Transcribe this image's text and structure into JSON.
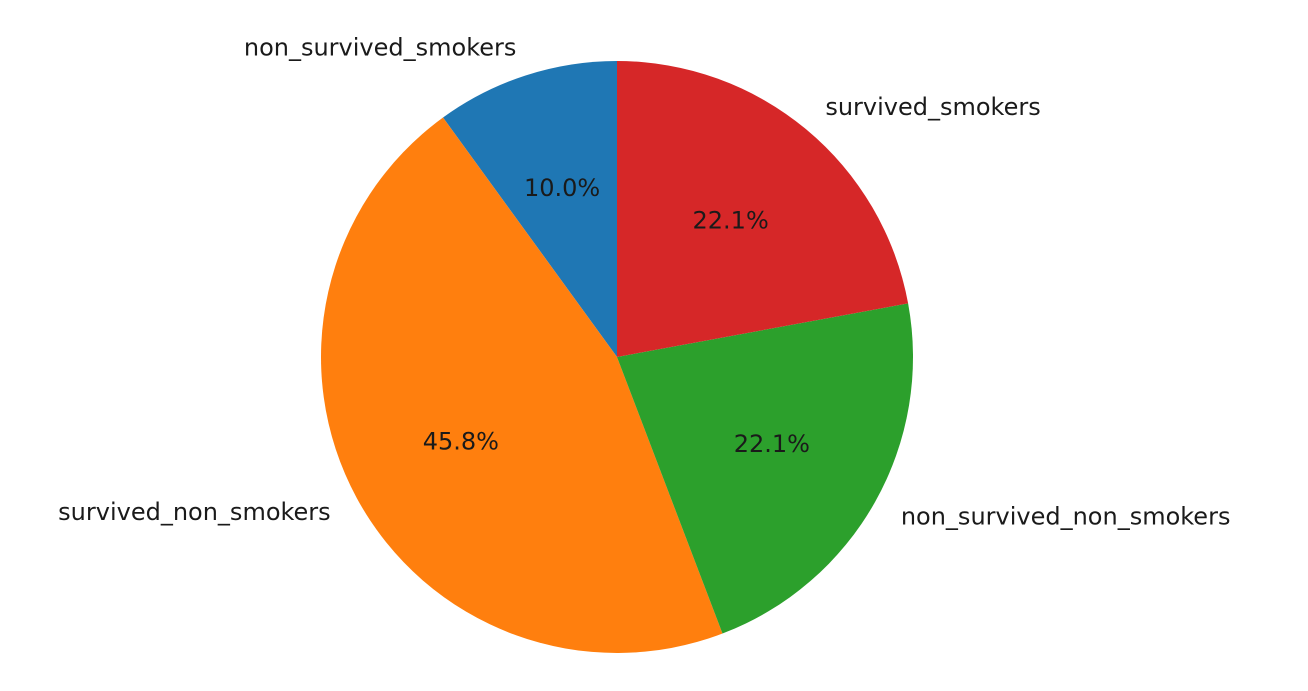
{
  "chart_data": {
    "type": "pie",
    "start_angle_deg": 90,
    "direction": "counterclockwise",
    "slices": [
      {
        "label": "non_survived_smokers",
        "value": 10.0,
        "pct_label": "10.0%",
        "color": "#1f77b4"
      },
      {
        "label": "survived_non_smokers",
        "value": 45.8,
        "pct_label": "45.8%",
        "color": "#ff7f0e"
      },
      {
        "label": "non_survived_non_smokers",
        "value": 22.1,
        "pct_label": "22.1%",
        "color": "#2ca02c"
      },
      {
        "label": "survived_smokers",
        "value": 22.1,
        "pct_label": "22.1%",
        "color": "#d62728"
      }
    ]
  }
}
